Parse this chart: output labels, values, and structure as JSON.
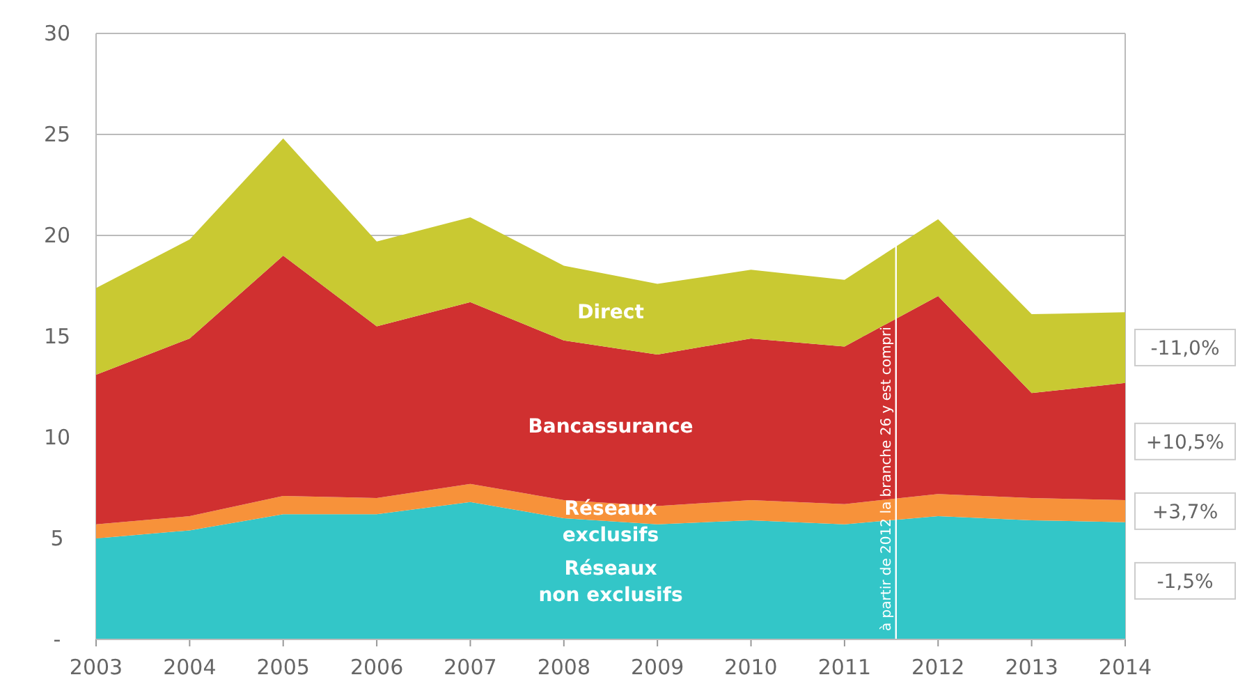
{
  "chart_data": {
    "type": "area",
    "stacked": true,
    "x": [
      2003,
      2004,
      2005,
      2006,
      2007,
      2008,
      2009,
      2010,
      2011,
      2012,
      2013,
      2014
    ],
    "xlim": [
      2003,
      2014
    ],
    "xticks": [
      2003,
      2004,
      2005,
      2006,
      2007,
      2008,
      2009,
      2010,
      2011,
      2012,
      2013,
      2014
    ],
    "ylim": [
      0,
      30
    ],
    "yticks": [
      {
        "value": 0,
        "label": "-"
      },
      5,
      10,
      15,
      20,
      25,
      30
    ],
    "grid": "y",
    "legend": false,
    "series": [
      {
        "name": "Réseaux non exclusifs",
        "color": "#33c6c8",
        "values": [
          5.0,
          5.4,
          6.2,
          6.2,
          6.8,
          6.0,
          5.7,
          5.9,
          5.7,
          6.1,
          5.9,
          5.8
        ]
      },
      {
        "name": "Réseaux exclusifs",
        "color": "#f7923a",
        "values": [
          0.7,
          0.7,
          0.9,
          0.8,
          0.9,
          0.9,
          0.9,
          1.0,
          1.0,
          1.1,
          1.1,
          1.1
        ]
      },
      {
        "name": "Bancassurance",
        "color": "#d03030",
        "values": [
          7.4,
          8.8,
          11.9,
          8.5,
          9.0,
          7.9,
          7.5,
          8.0,
          7.8,
          9.8,
          5.2,
          5.8
        ]
      },
      {
        "name": "Direct",
        "color": "#c9c932",
        "values": [
          4.3,
          4.9,
          5.8,
          4.2,
          4.2,
          3.7,
          3.5,
          3.4,
          3.3,
          3.8,
          3.9,
          3.5
        ]
      }
    ],
    "annotations": [
      "-11,0%",
      "+10,5%",
      "+3,7%",
      "-1,5%"
    ],
    "ref_lines": [
      {
        "axis": "x",
        "value": 2011.55,
        "label": "à partir de 2012 la branche 26 y est compri",
        "color": "#ffffff"
      }
    ]
  }
}
